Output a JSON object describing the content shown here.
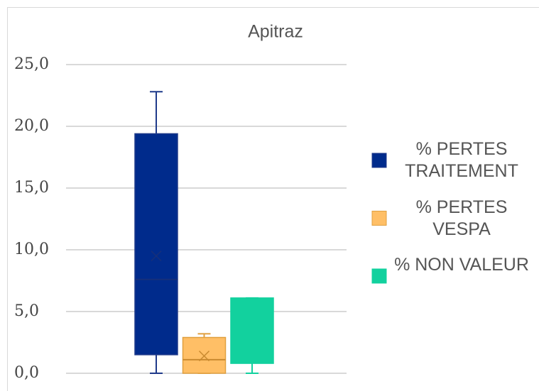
{
  "chart_data": {
    "type": "box",
    "title": "Apitraz",
    "ylim": [
      0,
      25
    ],
    "yticks": [
      {
        "value": 0,
        "label": "0,0"
      },
      {
        "value": 5,
        "label": "5,0"
      },
      {
        "value": 10,
        "label": "10,0"
      },
      {
        "value": 15,
        "label": "15,0"
      },
      {
        "value": 20,
        "label": "20,0"
      },
      {
        "value": 25,
        "label": "25,0"
      }
    ],
    "grid": true,
    "legend": "right",
    "series": [
      {
        "name": "% PERTES TRAITEMENT",
        "color": "#002b8c",
        "min": 0,
        "q1": 1.5,
        "median": 7.6,
        "q3": 19.4,
        "max": 22.8,
        "mean": 9.5
      },
      {
        "name": "% PERTES VESPA",
        "color": "#ffbf66",
        "min": 0,
        "q1": 0,
        "median": 1.1,
        "q3": 2.9,
        "max": 3.2,
        "mean": 1.4
      },
      {
        "name": "% NON VALEUR",
        "color": "#12d19e",
        "min": 0,
        "q1": 0.8,
        "q3": 6.1,
        "max": 6.1
      }
    ]
  }
}
